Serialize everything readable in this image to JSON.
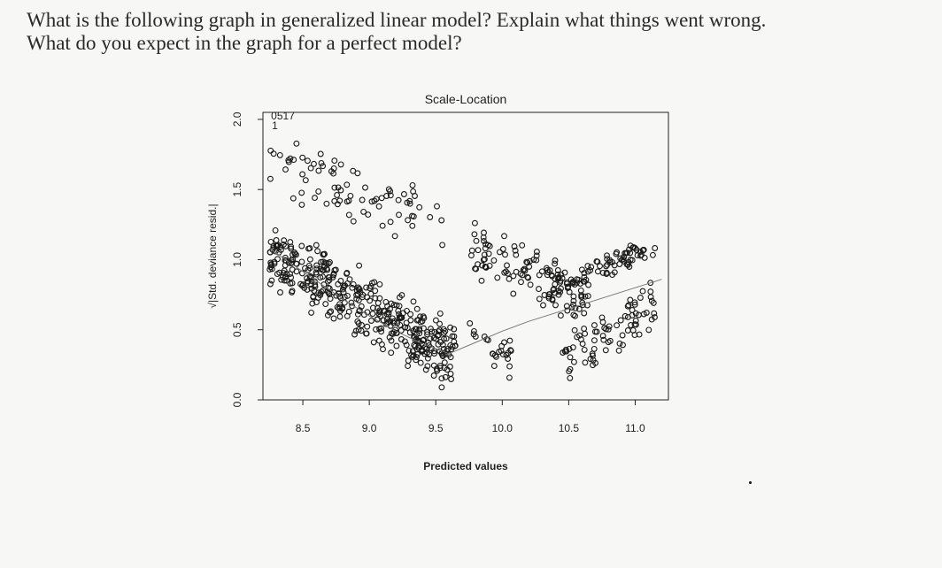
{
  "question": {
    "line1": "What is the following graph in generalized linear model? Explain what things went wrong.",
    "line2": "What do you expect in the graph for a perfect model?"
  },
  "chart_data": {
    "type": "scatter",
    "title": "Scale-Location",
    "xlabel": "Predicted values",
    "ylabel": "√|Std. deviance resid.|",
    "xlim": [
      8.2,
      11.25
    ],
    "ylim": [
      0.0,
      2.05
    ],
    "xticks": [
      8.5,
      9.0,
      9.5,
      10.0,
      10.5,
      11.0
    ],
    "xtick_labels": [
      "8.5",
      "9.0",
      "9.5",
      "10.0",
      "10.5",
      "11.0"
    ],
    "yticks": [
      0.0,
      0.5,
      1.0,
      1.5,
      2.0
    ],
    "ytick_labels": [
      "0.0",
      "0.5",
      "1.0",
      "1.5",
      "2.0"
    ],
    "grid": false,
    "annotations": [
      {
        "text": "0517",
        "x": 8.35,
        "y": 2.0
      },
      {
        "text": "1",
        "x": 8.29,
        "y": 1.93
      }
    ],
    "smooth_line": {
      "x": [
        8.25,
        8.4,
        8.6,
        8.8,
        9.0,
        9.2,
        9.4,
        9.6,
        9.8,
        10.0,
        10.2,
        10.4,
        10.6,
        10.8,
        11.0,
        11.2
      ],
      "y": [
        1.08,
        0.98,
        0.85,
        0.72,
        0.6,
        0.49,
        0.4,
        0.33,
        0.41,
        0.49,
        0.56,
        0.62,
        0.68,
        0.74,
        0.8,
        0.86
      ]
    },
    "clusters": [
      {
        "name": "",
        "x_range": [
          8.25,
          9.65
        ],
        "y_start": 1.05,
        "y_end": 0.3,
        "count": 420,
        "spread": 0.28
      },
      {
        "name": "",
        "x_range": [
          8.25,
          9.55
        ],
        "y_start": 1.7,
        "y_end": 1.25,
        "count": 80,
        "spread": 0.25
      },
      {
        "name": "",
        "x_range": [
          9.75,
          10.65
        ],
        "y_start": 1.1,
        "y_end": 0.7,
        "count": 110,
        "spread": 0.22
      },
      {
        "name": "",
        "x_range": [
          9.75,
          10.1
        ],
        "y_start": 0.55,
        "y_end": 0.25,
        "count": 25,
        "spread": 0.18
      },
      {
        "name": "",
        "x_range": [
          10.35,
          11.15
        ],
        "y_start": 0.8,
        "y_end": 1.08,
        "count": 90,
        "spread": 0.1
      },
      {
        "name": "",
        "x_range": [
          10.45,
          11.15
        ],
        "y_start": 0.25,
        "y_end": 0.7,
        "count": 80,
        "spread": 0.2
      }
    ]
  }
}
